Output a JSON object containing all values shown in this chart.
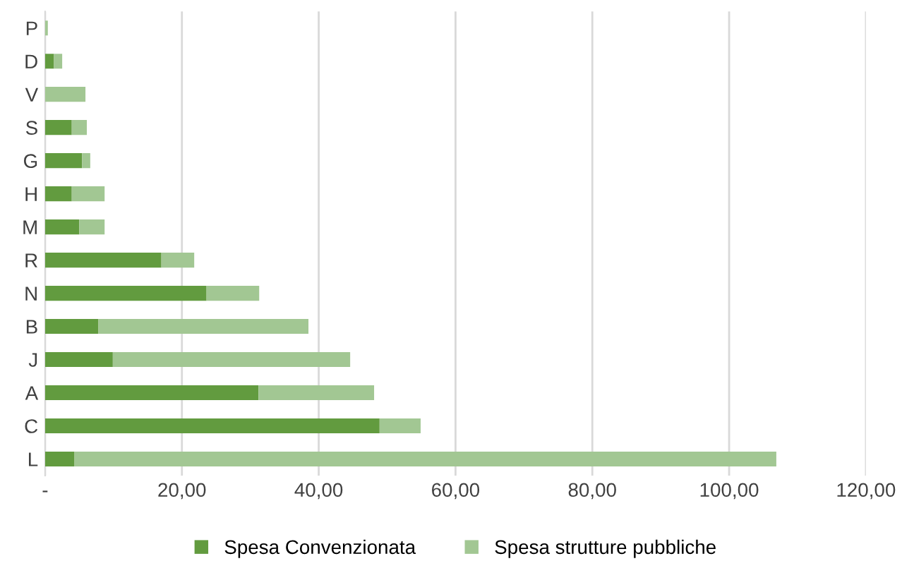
{
  "chart_data": {
    "type": "bar",
    "orientation": "horizontal",
    "stacked": true,
    "categories": [
      "P",
      "D",
      "V",
      "S",
      "G",
      "H",
      "M",
      "R",
      "N",
      "B",
      "J",
      "A",
      "C",
      "L"
    ],
    "series": [
      {
        "name": "Spesa Convenzionata",
        "color": "#629b3f",
        "values": [
          0,
          1.3,
          0,
          3.9,
          5.4,
          3.9,
          5.0,
          17.0,
          23.6,
          7.8,
          9.9,
          31.2,
          48.9,
          4.3
        ]
      },
      {
        "name": "Spesa strutture pubbliche",
        "color": "#a2c793",
        "values": [
          0.4,
          1.2,
          5.9,
          2.2,
          1.2,
          4.8,
          3.7,
          4.8,
          7.7,
          30.7,
          34.7,
          16.9,
          6.0,
          102.6
        ]
      }
    ],
    "xlim": [
      0,
      120
    ],
    "xticks": [
      {
        "value": 0,
        "label": "-"
      },
      {
        "value": 20,
        "label": "20,00"
      },
      {
        "value": 40,
        "label": "40,00"
      },
      {
        "value": 60,
        "label": "60,00"
      },
      {
        "value": 80,
        "label": "80,00"
      },
      {
        "value": 100,
        "label": "100,00"
      },
      {
        "value": 120,
        "label": "120,00"
      }
    ],
    "grid": "x",
    "legend": "bottom"
  }
}
